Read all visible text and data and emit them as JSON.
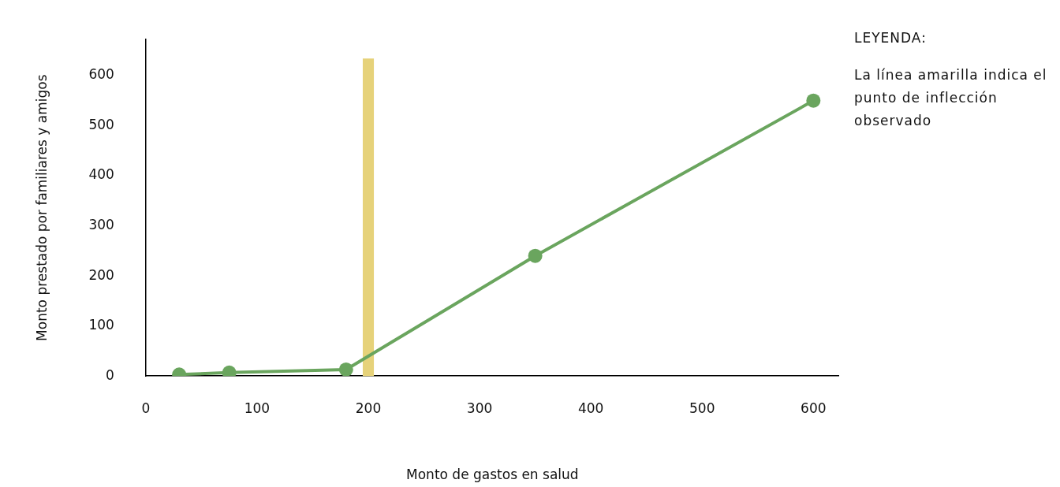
{
  "chart_data": {
    "type": "line",
    "xlabel": "Monto de gastos en salud",
    "ylabel": "Monto prestado por familiares y amigos",
    "x": [
      30,
      75,
      180,
      350,
      600
    ],
    "series": [
      {
        "color": "#6aa55e",
        "values": [
          3,
          7,
          13,
          240,
          550
        ]
      }
    ],
    "xlim": [
      0,
      623
    ],
    "ylim": [
      0,
      672
    ],
    "xticks": [
      0,
      100,
      200,
      300,
      400,
      500,
      600
    ],
    "yticks": [
      0,
      100,
      200,
      300,
      400,
      500,
      600
    ],
    "bands": [
      {
        "axis": "x",
        "from": 195,
        "to": 205,
        "color": "#e6d27a"
      }
    ],
    "annotations": [
      "LEYENDA:",
      "La línea amarilla indica el punto de inflección observado"
    ],
    "marker": "circle",
    "line_style": "solid",
    "grid": false,
    "legend": false
  }
}
